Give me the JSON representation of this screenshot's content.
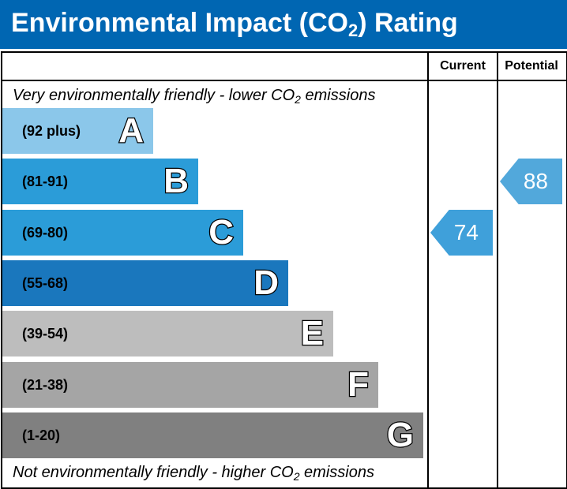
{
  "header": {
    "title_prefix": "Environmental Impact (CO",
    "title_sub": "2",
    "title_suffix": ") Rating",
    "background": "#0066b2"
  },
  "columns": {
    "current": "Current",
    "potential": "Potential"
  },
  "top_note": {
    "prefix": "Very environmentally friendly - lower CO",
    "sub": "2",
    "suffix": " emissions"
  },
  "bottom_note": {
    "prefix": "Not environmentally friendly - higher CO",
    "sub": "2",
    "suffix": " emissions"
  },
  "chart_data": {
    "type": "bar",
    "categories": [
      "A",
      "B",
      "C",
      "D",
      "E",
      "F",
      "G"
    ],
    "bands": [
      {
        "letter": "A",
        "range": "(92 plus)",
        "color": "#8bc7ea"
      },
      {
        "letter": "B",
        "range": "(81-91)",
        "color": "#2b9cd8"
      },
      {
        "letter": "C",
        "range": "(69-80)",
        "color": "#2b9cd8"
      },
      {
        "letter": "D",
        "range": "(55-68)",
        "color": "#1a77bd"
      },
      {
        "letter": "E",
        "range": "(39-54)",
        "color": "#bdbdbd"
      },
      {
        "letter": "F",
        "range": "(21-38)",
        "color": "#a5a5a5"
      },
      {
        "letter": "G",
        "range": "(1-20)",
        "color": "#808080"
      }
    ],
    "current": {
      "value": "74",
      "band": "C",
      "color": "#3fa0da"
    },
    "potential": {
      "value": "88",
      "band": "B",
      "color": "#52a8db"
    }
  }
}
